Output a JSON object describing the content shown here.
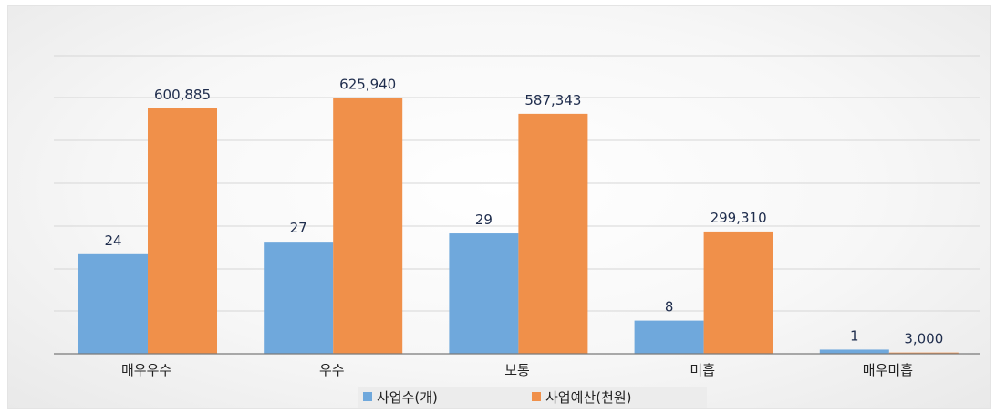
{
  "chart_data": {
    "type": "bar",
    "categories": [
      "매우우수",
      "우수",
      "보통",
      "미흡",
      "매우미흡"
    ],
    "series": [
      {
        "name": "사업수(개)",
        "values": [
          24,
          27,
          29,
          8,
          1
        ],
        "labels": [
          "24",
          "27",
          "29",
          "8",
          "1"
        ],
        "color": "#6FA8DC"
      },
      {
        "name": "사업예산(천원)",
        "values": [
          600885,
          625940,
          587343,
          299310,
          3000
        ],
        "labels": [
          "600,885",
          "625,940",
          "587,343",
          "299,310",
          "3,000"
        ],
        "color": "#F0904A"
      }
    ],
    "title": "",
    "xlabel": "",
    "ylabel": "",
    "legend_position": "bottom",
    "grid": true,
    "y_axis_visible": false
  }
}
